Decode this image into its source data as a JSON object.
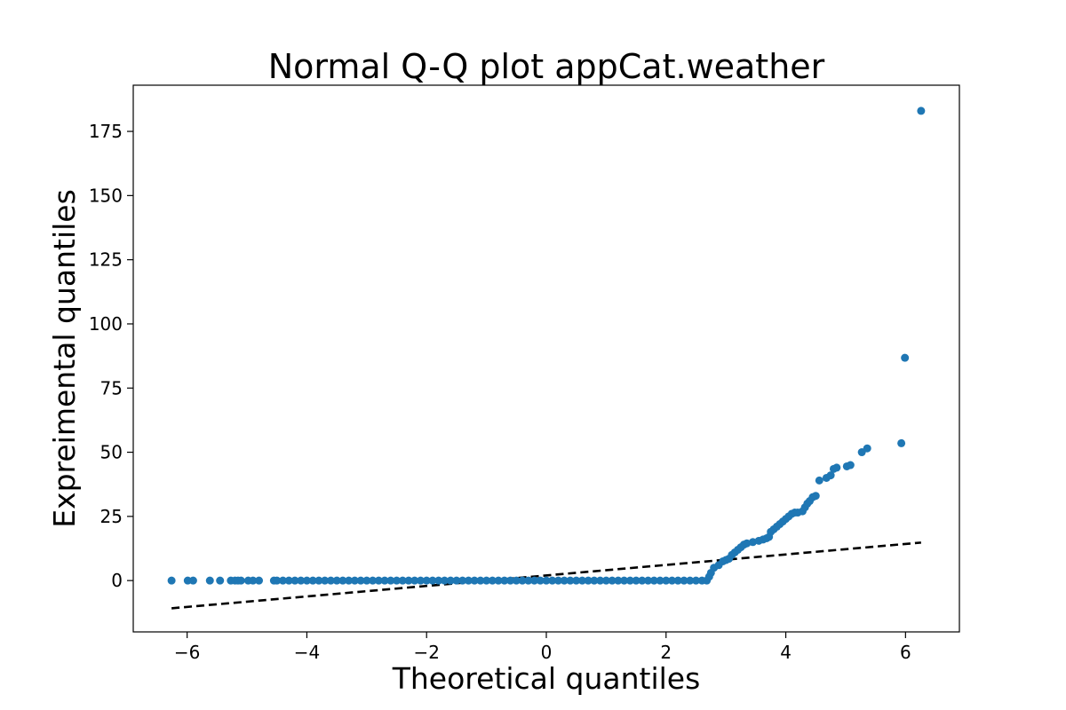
{
  "chart_data": {
    "type": "scatter",
    "title": "Normal Q-Q plot appCat.weather",
    "xlabel": "Theoretical quantiles",
    "ylabel": "Expreimental quantiles",
    "xlim": [
      -6.9,
      6.9
    ],
    "ylim": [
      -20,
      193
    ],
    "xticks": [
      -6,
      -4,
      -2,
      0,
      2,
      4,
      6
    ],
    "xtick_labels": [
      "−6",
      "−4",
      "−2",
      "0",
      "2",
      "4",
      "6"
    ],
    "yticks": [
      0,
      25,
      50,
      75,
      100,
      125,
      150,
      175
    ],
    "ytick_labels": [
      "0",
      "25",
      "50",
      "75",
      "100",
      "125",
      "150",
      "175"
    ],
    "grid": false,
    "series": [
      {
        "color": "#1f77b4",
        "marker": "circle",
        "points": [
          [
            -6.26,
            0
          ],
          [
            -5.99,
            0
          ],
          [
            -5.9,
            0
          ],
          [
            -5.62,
            0
          ],
          [
            -5.45,
            0
          ],
          [
            -5.27,
            0
          ],
          [
            -5.2,
            0
          ],
          [
            -5.15,
            0
          ],
          [
            -5.1,
            0
          ],
          [
            -4.98,
            0
          ],
          [
            -4.9,
            0
          ],
          [
            -4.8,
            0
          ],
          [
            -4.55,
            0
          ],
          [
            -4.5,
            0
          ],
          [
            -4.4,
            0
          ],
          [
            -4.3,
            0
          ],
          [
            -4.2,
            0
          ],
          [
            -4.1,
            0
          ],
          [
            -4.0,
            0
          ],
          [
            -3.9,
            0
          ],
          [
            -3.8,
            0
          ],
          [
            -3.7,
            0
          ],
          [
            -3.6,
            0
          ],
          [
            -3.5,
            0
          ],
          [
            -3.4,
            0
          ],
          [
            -3.3,
            0
          ],
          [
            -3.2,
            0
          ],
          [
            -3.1,
            0
          ],
          [
            -3.0,
            0
          ],
          [
            -2.9,
            0
          ],
          [
            -2.8,
            0
          ],
          [
            -2.7,
            0
          ],
          [
            -2.6,
            0
          ],
          [
            -2.5,
            0
          ],
          [
            -2.4,
            0
          ],
          [
            -2.3,
            0
          ],
          [
            -2.2,
            0
          ],
          [
            -2.1,
            0
          ],
          [
            -2.0,
            0
          ],
          [
            -1.9,
            0
          ],
          [
            -1.8,
            0
          ],
          [
            -1.7,
            0
          ],
          [
            -1.6,
            0
          ],
          [
            -1.5,
            0
          ],
          [
            -1.4,
            0
          ],
          [
            -1.3,
            0
          ],
          [
            -1.2,
            0
          ],
          [
            -1.1,
            0
          ],
          [
            -1.0,
            0
          ],
          [
            -0.9,
            0
          ],
          [
            -0.8,
            0
          ],
          [
            -0.7,
            0
          ],
          [
            -0.6,
            0
          ],
          [
            -0.5,
            0
          ],
          [
            -0.4,
            0
          ],
          [
            -0.3,
            0
          ],
          [
            -0.2,
            0
          ],
          [
            -0.1,
            0
          ],
          [
            0.0,
            0
          ],
          [
            0.1,
            0
          ],
          [
            0.2,
            0
          ],
          [
            0.3,
            0
          ],
          [
            0.4,
            0
          ],
          [
            0.5,
            0
          ],
          [
            0.6,
            0
          ],
          [
            0.7,
            0
          ],
          [
            0.8,
            0
          ],
          [
            0.9,
            0
          ],
          [
            1.0,
            0
          ],
          [
            1.1,
            0
          ],
          [
            1.2,
            0
          ],
          [
            1.3,
            0
          ],
          [
            1.4,
            0
          ],
          [
            1.5,
            0
          ],
          [
            1.6,
            0
          ],
          [
            1.7,
            0
          ],
          [
            1.8,
            0
          ],
          [
            1.9,
            0
          ],
          [
            2.0,
            0
          ],
          [
            2.1,
            0
          ],
          [
            2.2,
            0
          ],
          [
            2.3,
            0
          ],
          [
            2.4,
            0
          ],
          [
            2.5,
            0
          ],
          [
            2.6,
            0
          ],
          [
            2.68,
            0
          ],
          [
            2.72,
            1.5
          ],
          [
            2.75,
            3
          ],
          [
            2.8,
            5
          ],
          [
            2.88,
            6
          ],
          [
            2.95,
            7.5
          ],
          [
            3.0,
            8
          ],
          [
            3.05,
            8.5
          ],
          [
            3.1,
            10
          ],
          [
            3.15,
            11
          ],
          [
            3.2,
            12
          ],
          [
            3.25,
            13
          ],
          [
            3.3,
            14
          ],
          [
            3.35,
            14.5
          ],
          [
            3.45,
            15
          ],
          [
            3.55,
            15.5
          ],
          [
            3.62,
            16
          ],
          [
            3.68,
            16.5
          ],
          [
            3.72,
            17
          ],
          [
            3.75,
            19
          ],
          [
            3.8,
            20
          ],
          [
            3.85,
            21
          ],
          [
            3.9,
            22
          ],
          [
            3.95,
            23
          ],
          [
            4.0,
            24
          ],
          [
            4.05,
            25
          ],
          [
            4.1,
            26
          ],
          [
            4.15,
            26.5
          ],
          [
            4.2,
            26.5
          ],
          [
            4.28,
            27
          ],
          [
            4.32,
            28.5
          ],
          [
            4.36,
            30
          ],
          [
            4.4,
            31
          ],
          [
            4.45,
            32.5
          ],
          [
            4.5,
            33
          ],
          [
            4.56,
            39
          ],
          [
            4.68,
            40
          ],
          [
            4.75,
            41
          ],
          [
            4.8,
            43.5
          ],
          [
            4.85,
            44
          ],
          [
            5.02,
            44.5
          ],
          [
            5.08,
            45
          ],
          [
            5.27,
            50
          ],
          [
            5.36,
            51.5
          ],
          [
            5.93,
            53.5
          ],
          [
            5.99,
            86.8
          ],
          [
            6.26,
            183
          ]
        ]
      }
    ],
    "reference_line": {
      "style": "dashed",
      "color": "#000000",
      "x": [
        -6.26,
        6.26
      ],
      "y": [
        -10.8,
        14.8
      ]
    }
  }
}
